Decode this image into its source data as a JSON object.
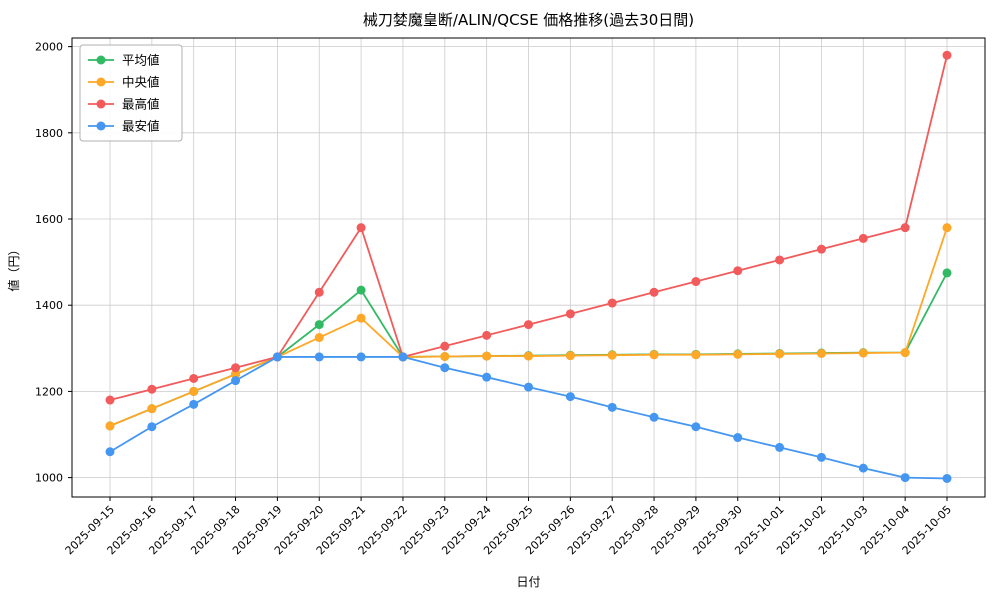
{
  "chart_data": {
    "type": "line",
    "title": "械刀婪魔皇断/ALIN/QCSE 価格推移(過去30日間)",
    "xlabel": "日付",
    "ylabel": "値（円）",
    "ylim": [
      955,
      2020
    ],
    "yticks": [
      1000,
      1200,
      1400,
      1600,
      1800,
      2000
    ],
    "grid": true,
    "legend_position": "upper-left",
    "background_color": "#ffffff",
    "grid_color": "#cccccc",
    "categories": [
      "2025-09-15",
      "2025-09-16",
      "2025-09-17",
      "2025-09-18",
      "2025-09-19",
      "2025-09-20",
      "2025-09-21",
      "2025-09-22",
      "2025-09-23",
      "2025-09-24",
      "2025-09-25",
      "2025-09-26",
      "2025-09-27",
      "2025-09-28",
      "2025-09-29",
      "2025-09-30",
      "2025-10-01",
      "2025-10-02",
      "2025-10-03",
      "2025-10-04",
      "2025-10-05"
    ],
    "series": [
      {
        "name": "平均値",
        "name_en": "average",
        "color": "#32b964",
        "values": [
          1120,
          1160,
          1200,
          1240,
          1280,
          1355,
          1435,
          1280,
          1281,
          1282,
          1283,
          1284,
          1285,
          1286,
          1286,
          1287,
          1288,
          1289,
          1290,
          1290,
          1475
        ]
      },
      {
        "name": "中央値",
        "name_en": "median",
        "color": "#ffa726",
        "values": [
          1120,
          1160,
          1200,
          1240,
          1280,
          1325,
          1370,
          1280,
          1281,
          1282,
          1282,
          1283,
          1284,
          1285,
          1285,
          1286,
          1287,
          1288,
          1289,
          1290,
          1580
        ]
      },
      {
        "name": "最高値",
        "name_en": "max",
        "color": "#f15b5b",
        "values": [
          1180,
          1205,
          1230,
          1255,
          1280,
          1430,
          1580,
          1280,
          1305,
          1330,
          1355,
          1380,
          1405,
          1430,
          1455,
          1480,
          1505,
          1530,
          1555,
          1580,
          1980
        ]
      },
      {
        "name": "最安値",
        "name_en": "min",
        "color": "#4596f0",
        "values": [
          1060,
          1118,
          1170,
          1225,
          1280,
          1280,
          1280,
          1280,
          1255,
          1233,
          1210,
          1188,
          1163,
          1140,
          1118,
          1093,
          1070,
          1047,
          1022,
          1000,
          998
        ]
      }
    ]
  }
}
